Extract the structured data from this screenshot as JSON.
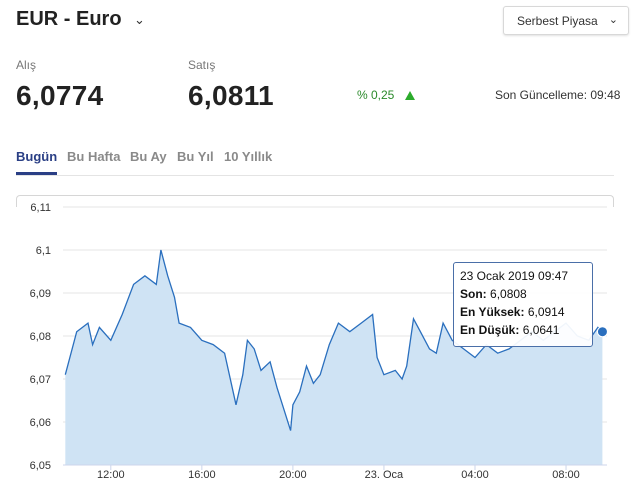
{
  "header": {
    "title": "EUR - Euro",
    "market_label": "Serbest Piyasa"
  },
  "quotes": {
    "buy_label": "Alış",
    "buy_value": "6,0774",
    "sell_label": "Satış",
    "sell_value": "6,0811",
    "change": "% 0,25",
    "change_color": "#2cab2c",
    "last_update": "Son Güncelleme: 09:48"
  },
  "tabs": [
    {
      "label": "Bugün",
      "active": true
    },
    {
      "label": "Bu Hafta",
      "active": false
    },
    {
      "label": "Bu Ay",
      "active": false
    },
    {
      "label": "Bu Yıl",
      "active": false
    },
    {
      "label": "10 Yıllık",
      "active": false
    }
  ],
  "tooltip": {
    "date": "23 Ocak 2019 09:47",
    "last_label": "Son:",
    "last_value": "6,0808",
    "high_label": "En Yüksek:",
    "high_value": "6,0914",
    "low_label": "En Düşük:",
    "low_value": "6,0641"
  },
  "chart_data": {
    "type": "area",
    "title": "",
    "xlabel": "",
    "ylabel": "",
    "ylim": [
      6.05,
      6.11
    ],
    "yticks": [
      "6,05",
      "6,06",
      "6,07",
      "6,08",
      "6,09",
      "6,1",
      "6,11"
    ],
    "xticks": [
      {
        "t": 12,
        "label": "12:00"
      },
      {
        "t": 16,
        "label": "16:00"
      },
      {
        "t": 20,
        "label": "20:00"
      },
      {
        "t": 24,
        "label": "23. Oca"
      },
      {
        "t": 28,
        "label": "04:00"
      },
      {
        "t": 32,
        "label": "08:00"
      }
    ],
    "xlim": [
      9.9,
      33.8
    ],
    "line_color": "#2a6fbe",
    "fill_color": "#cfe3f4",
    "grid": true,
    "series": [
      {
        "x": [
          10.0,
          10.5,
          11.0,
          11.2,
          11.5,
          12.0,
          12.5,
          13.0,
          13.5,
          14.0,
          14.2,
          14.5,
          14.8,
          15.0,
          15.5,
          16.0,
          16.5,
          17.0,
          17.5,
          17.8,
          18.0,
          18.3,
          18.6,
          19.0,
          19.3,
          19.6,
          19.9,
          20.0,
          20.3,
          20.6,
          20.9,
          21.2,
          21.6,
          22.0,
          22.5,
          23.0,
          23.5,
          23.7,
          24.0,
          24.5,
          24.8,
          25.0,
          25.3,
          25.6,
          26.0,
          26.3,
          26.6,
          27.0,
          27.5,
          28.0,
          28.5,
          29.0,
          29.5,
          30.0,
          30.5,
          31.0,
          31.5,
          32.0,
          32.5,
          33.0,
          33.4,
          33.6
        ],
        "y": [
          6.071,
          6.081,
          6.083,
          6.078,
          6.082,
          6.079,
          6.085,
          6.092,
          6.094,
          6.092,
          6.1,
          6.094,
          6.089,
          6.083,
          6.082,
          6.079,
          6.078,
          6.076,
          6.064,
          6.071,
          6.079,
          6.077,
          6.072,
          6.074,
          6.068,
          6.063,
          6.058,
          6.064,
          6.067,
          6.073,
          6.069,
          6.071,
          6.078,
          6.083,
          6.081,
          6.083,
          6.085,
          6.075,
          6.071,
          6.072,
          6.07,
          6.073,
          6.084,
          6.081,
          6.077,
          6.076,
          6.083,
          6.079,
          6.077,
          6.075,
          6.078,
          6.076,
          6.077,
          6.079,
          6.081,
          6.079,
          6.081,
          6.083,
          6.08,
          6.079,
          6.082,
          6.081
        ]
      }
    ]
  }
}
